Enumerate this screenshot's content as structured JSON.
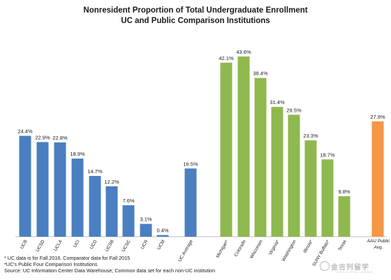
{
  "chart_data": {
    "type": "bar",
    "title": "Nonresident Proportion of Total Undergraduate Enrollment",
    "subtitle": "UC and Public Comparison Institutions",
    "categories": [
      "UCB",
      "UCSD",
      "UCLA",
      "UCI",
      "UCD",
      "UCSB",
      "UCSC",
      "UCR",
      "UCM",
      "UC Average",
      "Michigan*",
      "Colorado",
      "Wisconsin",
      "Virginia*",
      "Washington",
      "Illinois*",
      "SUNY Buffalo*",
      "Texas",
      "AAU Public Avg."
    ],
    "values": [
      24.4,
      22.9,
      22.8,
      18.9,
      14.7,
      12.2,
      7.6,
      3.1,
      0.4,
      16.5,
      42.1,
      43.6,
      38.4,
      31.4,
      29.5,
      23.3,
      18.7,
      9.8,
      27.9
    ],
    "data_labels": [
      "24.4%",
      "22.9%",
      "22.8%",
      "18.9%",
      "14.7%",
      "12.2%",
      "7.6%",
      "3.1%",
      "0.4%",
      "16.5%",
      "42.1%",
      "43.6%",
      "38.4%",
      "31.4%",
      "29.5%",
      "23.3%",
      "18.7%",
      "9.8%",
      "27.9%"
    ],
    "groups": [
      "uc",
      "uc",
      "uc",
      "uc",
      "uc",
      "uc",
      "uc",
      "uc",
      "uc",
      "ucavg",
      "comp",
      "comp",
      "comp",
      "comp",
      "comp",
      "comp",
      "comp",
      "comp",
      "aau"
    ],
    "colors": {
      "uc": "#4a7fc1",
      "ucavg": "#4a7fc1",
      "comp": "#8fb84f",
      "aau": "#f79646"
    },
    "ylim": [
      0,
      50
    ],
    "grid": false,
    "legend": "none"
  },
  "footnotes": [
    "* UC data is for Fall 2016. Comparator data for Fall 2015",
    "*UC's Public Four Comparison Institutions",
    "Source: UC Information Center Data Warehouse; Common data set for each non-UC institution"
  ],
  "watermark": {
    "text": "金吉列留学",
    "sub": "JINJILIE STUDY ABROAD"
  }
}
